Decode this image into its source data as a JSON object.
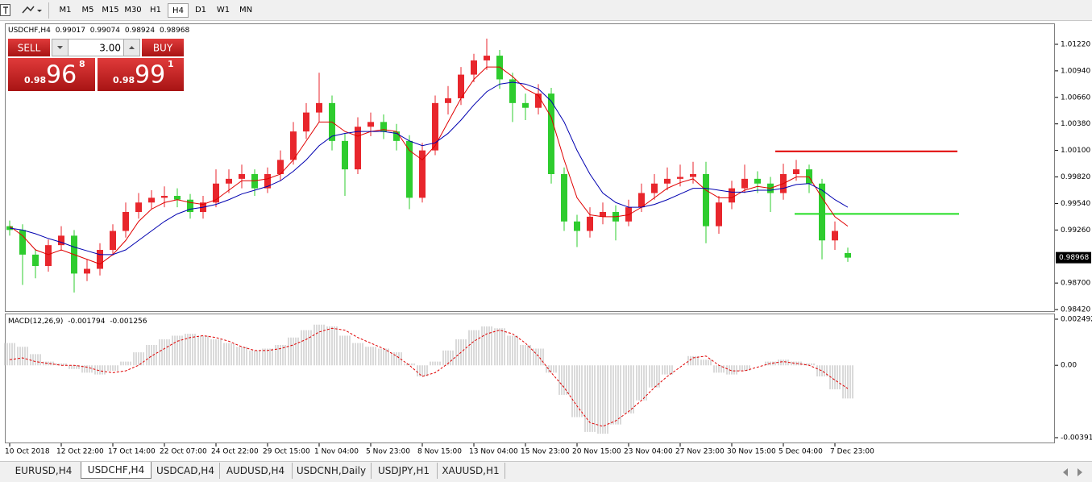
{
  "toolbar": {
    "timeframes": [
      "M1",
      "M5",
      "M15",
      "M30",
      "H1",
      "H4",
      "D1",
      "W1",
      "MN"
    ],
    "active": 5
  },
  "trade_panel": {
    "sell": "SELL",
    "lots": "3.00",
    "buy": "BUY",
    "bid": {
      "prefix": "0.98",
      "main": "96",
      "small": "8"
    },
    "ask": {
      "prefix": "0.98",
      "main": "99",
      "small": "1"
    }
  },
  "chart_data": [
    {
      "type": "candlestick",
      "title": "USDCHF,H4",
      "categories": [
        "10 Oct 2018",
        null,
        null,
        null,
        "12 Oct 22:00",
        null,
        null,
        null,
        "17 Oct 14:00",
        null,
        null,
        null,
        "22 Oct 07:00",
        null,
        null,
        null,
        "24 Oct 22:00",
        null,
        null,
        null,
        "29 Oct 15:00",
        null,
        null,
        null,
        "1 Nov 04:00",
        null,
        null,
        null,
        "5 Nov 23:00",
        null,
        null,
        null,
        "8 Nov 15:00",
        null,
        null,
        null,
        "13 Nov 04:00",
        null,
        null,
        null,
        "15 Nov 23:00",
        null,
        null,
        null,
        "20 Nov 15:00",
        null,
        null,
        null,
        "23 Nov 04:00",
        null,
        null,
        null,
        "27 Nov 23:00",
        null,
        null,
        null,
        "30 Nov 15:00",
        null,
        null,
        null,
        "5 Dec 04:00",
        null,
        null,
        null,
        "7 Dec 23:00",
        null
      ],
      "open": [
        0.993,
        0.9926,
        0.99,
        0.9888,
        0.991,
        0.992,
        0.988,
        0.9885,
        0.9905,
        0.9925,
        0.9945,
        0.9955,
        0.996,
        0.9962,
        0.9958,
        0.9945,
        0.9955,
        0.9975,
        0.998,
        0.9985,
        0.997,
        0.9985,
        1.0,
        1.003,
        1.005,
        1.006,
        1.002,
        0.999,
        1.0035,
        1.004,
        1.003,
        1.002,
        0.996,
        1.001,
        1.006,
        1.0065,
        1.009,
        1.0105,
        1.011,
        1.0085,
        1.006,
        1.0055,
        1.007,
        0.9985,
        0.9935,
        0.9925,
        0.994,
        0.9945,
        0.9935,
        0.995,
        0.9965,
        0.9975,
        0.998,
        0.9982,
        0.9985,
        0.993,
        0.9955,
        0.997,
        0.998,
        0.9975,
        0.9965,
        0.9985,
        0.999,
        0.9975,
        0.9915,
        0.99017
      ],
      "high": [
        0.9936,
        0.9932,
        0.9906,
        0.9916,
        0.993,
        0.9926,
        0.9895,
        0.9912,
        0.9932,
        0.9955,
        0.9965,
        0.9968,
        0.9972,
        0.997,
        0.9964,
        0.9962,
        0.999,
        0.999,
        0.9995,
        0.999,
        0.9992,
        1.001,
        1.004,
        1.006,
        1.0092,
        1.0068,
        1.0028,
        1.0045,
        1.005,
        1.0048,
        1.0038,
        1.0026,
        1.0018,
        1.0068,
        1.0078,
        1.0098,
        1.0112,
        1.0128,
        1.0116,
        1.0092,
        1.007,
        1.008,
        1.0076,
        0.9992,
        0.9942,
        0.995,
        0.9955,
        0.9952,
        0.9958,
        0.9975,
        0.9985,
        0.9992,
        0.9995,
        0.9998,
        0.9998,
        0.9962,
        0.9978,
        0.9995,
        0.9988,
        0.9982,
        0.9996,
        1.0,
        0.9995,
        0.998,
        0.9935,
        0.99074
      ],
      "low": [
        0.992,
        0.9868,
        0.9875,
        0.9882,
        0.9904,
        0.986,
        0.9872,
        0.9878,
        0.9899,
        0.9918,
        0.9938,
        0.9948,
        0.995,
        0.995,
        0.9938,
        0.9938,
        0.995,
        0.9965,
        0.997,
        0.9962,
        0.9965,
        0.9978,
        0.9995,
        1.0022,
        1.004,
        1.001,
        0.9962,
        0.9985,
        1.0025,
        1.0022,
        1.001,
        0.9948,
        0.9955,
        1.0005,
        1.0048,
        1.0058,
        1.0082,
        1.0095,
        1.0075,
        1.004,
        1.0042,
        1.0048,
        0.9975,
        0.9925,
        0.9908,
        0.9918,
        0.9932,
        0.9915,
        0.993,
        0.9945,
        0.9958,
        0.9968,
        0.9972,
        0.9975,
        0.9912,
        0.9922,
        0.9948,
        0.9965,
        0.9965,
        0.9945,
        0.9958,
        0.9978,
        0.9965,
        0.9895,
        0.9905,
        0.98924
      ],
      "close": [
        0.9926,
        0.99,
        0.9888,
        0.991,
        0.992,
        0.988,
        0.9885,
        0.9905,
        0.9925,
        0.9945,
        0.9955,
        0.996,
        0.9962,
        0.9958,
        0.9945,
        0.9955,
        0.9975,
        0.998,
        0.9985,
        0.997,
        0.9985,
        1.0,
        1.003,
        1.005,
        1.006,
        1.002,
        0.999,
        1.0035,
        1.004,
        1.003,
        1.002,
        0.996,
        1.001,
        1.006,
        1.0065,
        1.009,
        1.0105,
        1.011,
        1.0085,
        1.006,
        1.0055,
        1.007,
        0.9985,
        0.9935,
        0.9925,
        0.994,
        0.9945,
        0.9935,
        0.995,
        0.9965,
        0.9975,
        0.998,
        0.9982,
        0.9985,
        0.993,
        0.9955,
        0.997,
        0.998,
        0.9975,
        0.9965,
        0.9985,
        0.999,
        0.9975,
        0.9915,
        0.9925,
        0.98968
      ],
      "up_color": "#e8262c",
      "down_color": "#2ecc2e",
      "lines": [
        {
          "color": "#e00000",
          "values": [
            0.993,
            0.992,
            0.9905,
            0.99,
            0.9905,
            0.99,
            0.9895,
            0.989,
            0.99,
            0.9915,
            0.9935,
            0.9948,
            0.9955,
            0.9958,
            0.9955,
            0.9953,
            0.9958,
            0.9968,
            0.9978,
            0.9978,
            0.998,
            0.9985,
            1.0,
            1.002,
            1.004,
            1.004,
            1.003,
            1.0025,
            1.003,
            1.0032,
            1.003,
            1.001,
            1.0,
            1.0015,
            1.004,
            1.0065,
            1.0085,
            1.0098,
            1.0098,
            1.0088,
            1.0075,
            1.0068,
            1.0045,
            1.0,
            0.996,
            0.9942,
            0.994,
            0.994,
            0.9942,
            0.995,
            0.996,
            0.997,
            0.9976,
            0.998,
            0.9968,
            0.996,
            0.996,
            0.9968,
            0.9972,
            0.997,
            0.9975,
            0.9982,
            0.9982,
            0.996,
            0.994,
            0.993
          ]
        },
        {
          "color": "#0000b0",
          "values": [
            0.9928,
            0.9926,
            0.9922,
            0.9917,
            0.9913,
            0.9908,
            0.9904,
            0.99,
            0.99,
            0.9905,
            0.9915,
            0.9925,
            0.9935,
            0.9943,
            0.9948,
            0.995,
            0.9953,
            0.9958,
            0.9964,
            0.9968,
            0.9972,
            0.9978,
            0.9988,
            1.0,
            1.0015,
            1.0025,
            1.0028,
            1.003,
            1.003,
            1.003,
            1.0028,
            1.002,
            1.0015,
            1.0018,
            1.0028,
            1.0042,
            1.0058,
            1.0072,
            1.008,
            1.0082,
            1.008,
            1.0075,
            1.0062,
            1.004,
            1.001,
            0.9985,
            0.9965,
            0.9955,
            0.995,
            0.995,
            0.9953,
            0.9958,
            0.9964,
            0.997,
            0.997,
            0.9968,
            0.9966,
            0.9966,
            0.9968,
            0.9968,
            0.997,
            0.9974,
            0.9975,
            0.9968,
            0.9958,
            0.995
          ]
        }
      ],
      "levels": [
        {
          "value": 1.0009,
          "color": "#e00000"
        },
        {
          "value": 0.9943,
          "color": "#22dd22"
        }
      ],
      "ylim": [
        0.98395,
        1.01441
      ],
      "yticks": [
        {
          "value": 1.0122,
          "label": "1.01220"
        },
        {
          "value": 1.0094,
          "label": "1.00940"
        },
        {
          "value": 1.0066,
          "label": "1.00660"
        },
        {
          "value": 1.0038,
          "label": "1.00380"
        },
        {
          "value": 1.001,
          "label": "1.00100"
        },
        {
          "value": 0.9982,
          "label": "0.99820"
        },
        {
          "value": 0.9954,
          "label": "0.99540"
        },
        {
          "value": 0.9926,
          "label": "0.99260"
        },
        {
          "value": 0.987,
          "label": "0.98700"
        },
        {
          "value": 0.9842,
          "label": "0.98420"
        }
      ]
    },
    {
      "type": "macd",
      "title": "MACD(12,26,9)",
      "histogram": {
        "color": "#b4b4b4",
        "values": [
          0.0012,
          0.001,
          0.0006,
          0.0002,
          0.0001,
          -0.0002,
          -0.0004,
          -0.0005,
          -0.0003,
          0.0002,
          0.0007,
          0.0011,
          0.0014,
          0.0016,
          0.0017,
          0.0016,
          0.0014,
          0.0012,
          0.001,
          0.0008,
          0.0009,
          0.0011,
          0.0015,
          0.0019,
          0.0022,
          0.0021,
          0.0016,
          0.0012,
          0.001,
          0.0009,
          0.0007,
          0.0001,
          -0.0006,
          0.0002,
          0.0008,
          0.0014,
          0.0019,
          0.0021,
          0.002,
          0.0016,
          0.0011,
          0.0009,
          -0.0004,
          -0.0016,
          -0.0028,
          -0.0036,
          -0.0037,
          -0.0032,
          -0.0026,
          -0.0019,
          -0.0012,
          -0.0005,
          0.0,
          0.0005,
          0.0003,
          -0.0004,
          -0.0005,
          -0.0003,
          0.0,
          0.0002,
          0.0003,
          0.0002,
          0.0001,
          -0.0006,
          -0.0013,
          -0.001794
        ]
      },
      "signal": {
        "color": "#e00000",
        "values": [
          0.0003,
          0.0004,
          0.0002,
          0.0001,
          0.0,
          0.0,
          -0.0001,
          -0.0003,
          -0.0004,
          -0.0003,
          0.0,
          0.0005,
          0.0009,
          0.0013,
          0.0015,
          0.0016,
          0.0015,
          0.0013,
          0.001,
          0.0008,
          0.0008,
          0.0009,
          0.0011,
          0.0014,
          0.0018,
          0.002,
          0.0019,
          0.0015,
          0.0012,
          0.0009,
          0.0005,
          0.0,
          -0.0006,
          -0.0004,
          0.0001,
          0.0007,
          0.0013,
          0.0017,
          0.0019,
          0.0017,
          0.0012,
          0.0005,
          -0.0004,
          -0.0012,
          -0.0022,
          -0.0031,
          -0.0033,
          -0.003,
          -0.0025,
          -0.0019,
          -0.0012,
          -0.0006,
          -0.0001,
          0.0004,
          0.0005,
          0.0,
          -0.0003,
          -0.0003,
          -0.0001,
          0.0001,
          0.0002,
          0.0001,
          0.0,
          -0.0003,
          -0.0008,
          -0.001256
        ]
      },
      "ylim": [
        -0.004174,
        0.002753
      ],
      "yticks": [
        0.002492,
        {
          "value": 0,
          "label": "0.00"
        },
        -0.003913
      ]
    }
  ],
  "tabs": {
    "items": [
      "EURUSD,H4",
      "USDCHF,H4",
      "USDCAD,H4",
      "AUDUSD,H4",
      "USDCNH,Daily",
      "USDJPY,H1",
      "XAUUSD,H1"
    ],
    "active": 1
  }
}
